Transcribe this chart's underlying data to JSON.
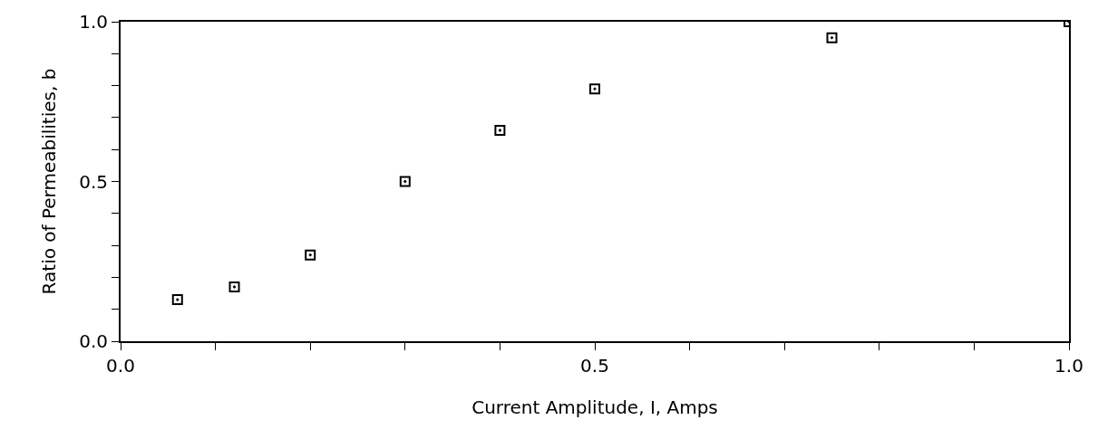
{
  "chart_data": {
    "type": "scatter",
    "xlabel": "Current Amplitude, I, Amps",
    "ylabel": "Ratio of Permeabilities, b",
    "x": [
      0.06,
      0.12,
      0.2,
      0.3,
      0.4,
      0.5,
      0.75,
      1.0
    ],
    "series": [
      {
        "color": "#000000",
        "values": [
          0.13,
          0.17,
          0.27,
          0.5,
          0.66,
          0.79,
          0.95,
          1.0
        ]
      }
    ],
    "xlim": [
      0,
      1
    ],
    "ylim": [
      0,
      1
    ],
    "xticks": [
      {
        "value": 0,
        "label": "0.0"
      },
      {
        "value": 0.1,
        "label": null
      },
      {
        "value": 0.2,
        "label": null
      },
      {
        "value": 0.3,
        "label": null
      },
      {
        "value": 0.4,
        "label": null
      },
      {
        "value": 0.5,
        "label": "0.5"
      },
      {
        "value": 0.6,
        "label": null
      },
      {
        "value": 0.7,
        "label": null
      },
      {
        "value": 0.8,
        "label": null
      },
      {
        "value": 0.9,
        "label": null
      },
      {
        "value": 1,
        "label": "1.0"
      }
    ],
    "yticks": [
      {
        "value": 0,
        "label": "0.0"
      },
      {
        "value": 0.1,
        "label": null
      },
      {
        "value": 0.2,
        "label": null
      },
      {
        "value": 0.3,
        "label": null
      },
      {
        "value": 0.4,
        "label": null
      },
      {
        "value": 0.5,
        "label": "0.5"
      },
      {
        "value": 0.6,
        "label": null
      },
      {
        "value": 0.7,
        "label": null
      },
      {
        "value": 0.8,
        "label": null
      },
      {
        "value": 0.9,
        "label": null
      },
      {
        "value": 1,
        "label": "1.0"
      }
    ],
    "grid": false,
    "legend": false,
    "marker": "square"
  }
}
